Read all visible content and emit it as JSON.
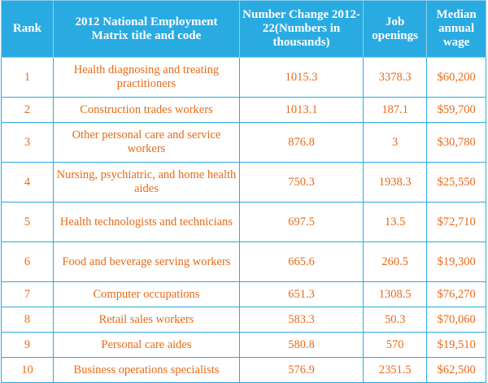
{
  "headers": {
    "rank": "Rank",
    "title": "2012 National Employment Matrix title and code",
    "change": "Number Change 2012-22(Numbers in thousands)",
    "openings": "Job openings",
    "wage": "Median annual wage"
  },
  "rows": [
    {
      "rank": "1",
      "title": "Health diagnosing and treating practitioners",
      "change": "1015.3",
      "openings": "3378.3",
      "wage": "$60,200"
    },
    {
      "rank": "2",
      "title": "Construction trades workers",
      "change": "1013.1",
      "openings": "187.1",
      "wage": "$59,700"
    },
    {
      "rank": "3",
      "title": "Other personal care and service workers",
      "change": "876.8",
      "openings": "3",
      "wage": "$30,780"
    },
    {
      "rank": "4",
      "title": "Nursing, psychiatric, and home health aides",
      "change": "750.3",
      "openings": "1938.3",
      "wage": "$25,550"
    },
    {
      "rank": "5",
      "title": "Health technologists and technicians",
      "change": "697.5",
      "openings": "13.5",
      "wage": "$72,710"
    },
    {
      "rank": "6",
      "title": "Food and beverage serving workers",
      "change": "665.6",
      "openings": "260.5",
      "wage": "$19,300"
    },
    {
      "rank": "7",
      "title": "Computer occupations",
      "change": "651.3",
      "openings": "1308.5",
      "wage": "$76,270"
    },
    {
      "rank": "8",
      "title": "Retail sales workers",
      "change": "583.3",
      "openings": "50.3",
      "wage": "$70,060"
    },
    {
      "rank": "9",
      "title": "Personal care aides",
      "change": "580.8",
      "openings": "570",
      "wage": "$19,510"
    },
    {
      "rank": "10",
      "title": "Business operations specialists",
      "change": "576.9",
      "openings": "2351.5",
      "wage": "$62,500"
    }
  ],
  "colors": {
    "header_bg": "#29abe2",
    "header_text": "#ffffff",
    "cell_text": "#e86a18",
    "grid": "#29abe2"
  }
}
